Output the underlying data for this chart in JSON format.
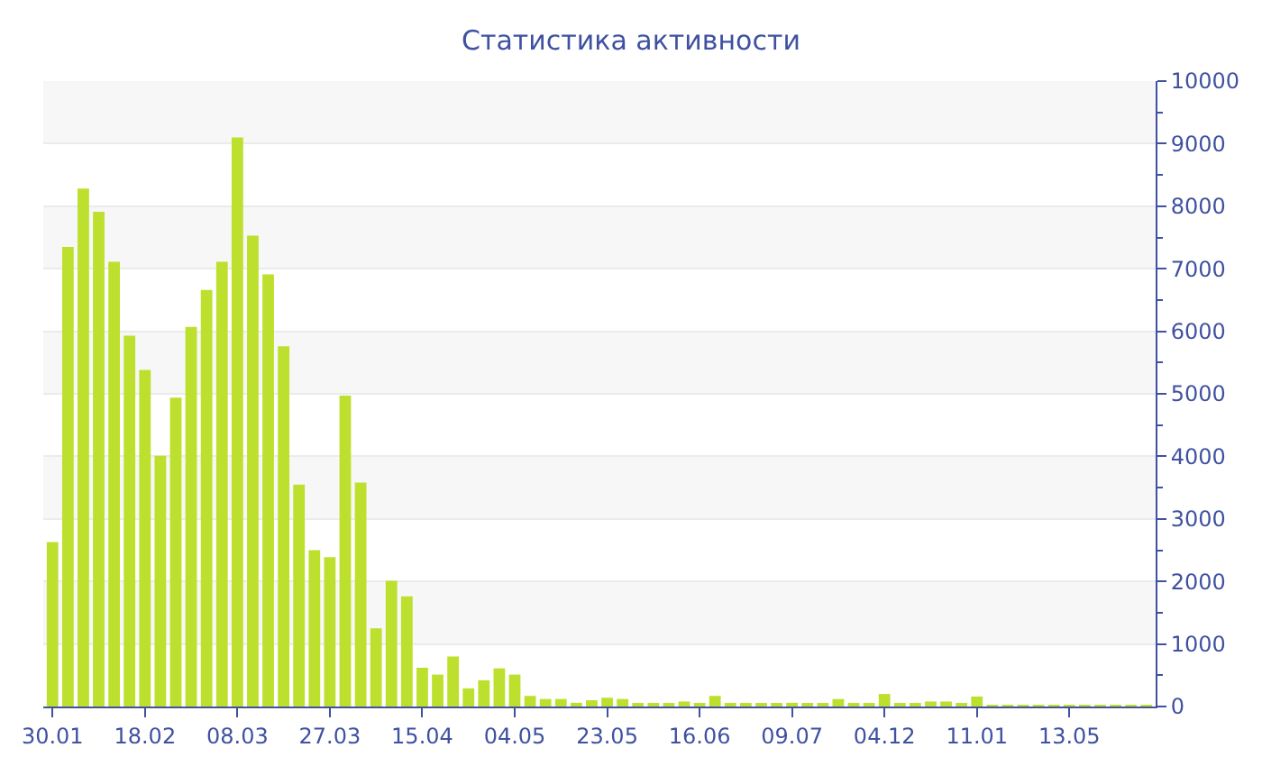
{
  "chart_data": {
    "type": "bar",
    "title": "Статистика активности",
    "categories": [
      "30.01",
      null,
      null,
      null,
      null,
      null,
      "18.02",
      null,
      null,
      null,
      null,
      null,
      "08.03",
      null,
      null,
      null,
      null,
      null,
      "27.03",
      null,
      null,
      null,
      null,
      null,
      "15.04",
      null,
      null,
      null,
      null,
      null,
      "04.05",
      null,
      null,
      null,
      null,
      null,
      "23.05",
      null,
      null,
      null,
      null,
      null,
      "16.06",
      null,
      null,
      null,
      null,
      null,
      "09.07",
      null,
      null,
      null,
      null,
      null,
      "04.12",
      null,
      null,
      null,
      null,
      null,
      "11.01",
      null,
      null,
      null,
      null,
      null,
      "13.05",
      null,
      null,
      null,
      null,
      null
    ],
    "values": [
      2630,
      7350,
      8280,
      7910,
      7110,
      5930,
      5380,
      4010,
      4940,
      6070,
      6660,
      7110,
      9100,
      7530,
      6910,
      5760,
      3550,
      2500,
      2390,
      4970,
      3580,
      1250,
      2010,
      1760,
      620,
      510,
      800,
      290,
      420,
      610,
      510,
      170,
      120,
      120,
      60,
      100,
      140,
      120,
      40,
      40,
      30,
      80,
      50,
      170,
      40,
      30,
      30,
      50,
      60,
      30,
      30,
      120,
      30,
      30,
      200,
      30,
      30,
      80,
      80,
      30,
      160,
      20,
      20,
      20,
      20,
      20,
      20,
      20,
      20,
      20,
      20,
      20
    ],
    "color": "#bde02f",
    "ylim": [
      0,
      10000
    ],
    "yticks": [
      0,
      1000,
      2000,
      3000,
      4000,
      5000,
      6000,
      7000,
      8000,
      9000,
      10000
    ],
    "grid": "y"
  }
}
